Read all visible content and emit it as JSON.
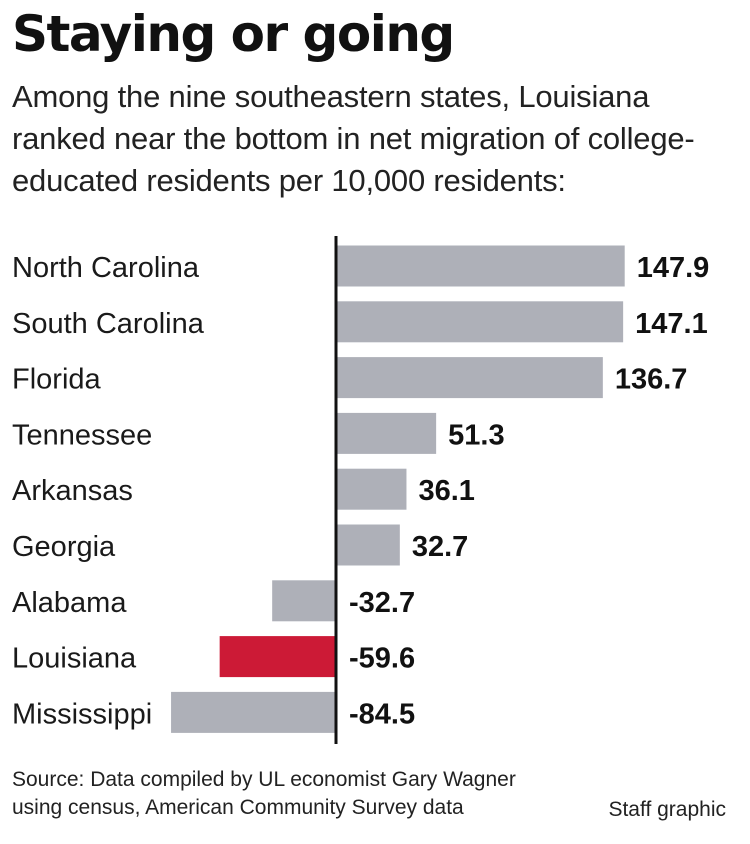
{
  "header": {
    "title": "Staying or going",
    "subtitle": "Among the nine southeastern states, Louisiana ranked near the bottom in net migration of college-educated residents per 10,000 residents:"
  },
  "footer": {
    "source_line1": "Source: Data compiled by UL economist Gary Wagner",
    "source_line2": "using census, American Community Survey data",
    "credit": "Staff graphic"
  },
  "colors": {
    "bar": "#aeb0b8",
    "highlight": "#cc1a36",
    "axis": "#111111",
    "text": "#1a1a1a"
  },
  "chart_data": {
    "type": "bar",
    "orientation": "horizontal",
    "categories": [
      "North Carolina",
      "South Carolina",
      "Florida",
      "Tennessee",
      "Arkansas",
      "Georgia",
      "Alabama",
      "Louisiana",
      "Mississippi"
    ],
    "values": [
      147.9,
      147.1,
      136.7,
      51.3,
      36.1,
      32.7,
      -32.7,
      -59.6,
      -84.5
    ],
    "labels": [
      "147.9",
      "147.1",
      "136.7",
      "51.3",
      "36.1",
      "32.7",
      "-32.7",
      "-59.6",
      "-84.5"
    ],
    "highlight": "Louisiana",
    "grid": false,
    "legend": "none"
  }
}
